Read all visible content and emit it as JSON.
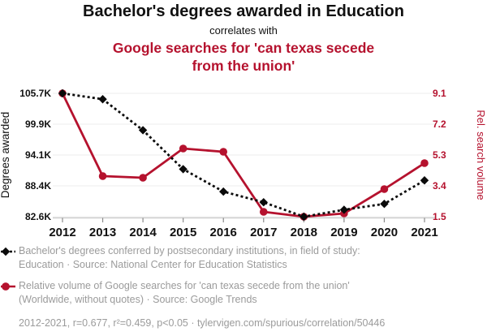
{
  "header": {
    "title": "Bachelor's degrees awarded in Education",
    "subtitle": "correlates with",
    "title2": "Google searches for 'can texas secede from the union'"
  },
  "chart_data": {
    "type": "line",
    "x": [
      "2012",
      "2013",
      "2014",
      "2015",
      "2016",
      "2017",
      "2018",
      "2019",
      "2020",
      "2021"
    ],
    "series": [
      {
        "name": "Bachelor's degrees awarded in Education",
        "axis": "left",
        "color": "#0a0a0a",
        "style": "dashed",
        "marker": "diamond",
        "values": [
          105700,
          104600,
          98800,
          91500,
          87300,
          85300,
          82600,
          83900,
          85000,
          89400
        ]
      },
      {
        "name": "Google searches for 'can texas secede from the union'",
        "axis": "right",
        "color": "#b5122e",
        "style": "solid",
        "marker": "circle",
        "values": [
          9.1,
          4.0,
          3.9,
          5.7,
          5.5,
          1.8,
          1.5,
          1.7,
          3.2,
          4.8
        ]
      }
    ],
    "y_left": {
      "label": "Degrees awarded",
      "ticks": [
        "105.7K",
        "99.9K",
        "94.1K",
        "88.4K",
        "82.6K"
      ],
      "min": 82600,
      "max": 105700
    },
    "y_right": {
      "label": "Rel. search volume",
      "ticks": [
        "9.1",
        "7.2",
        "5.3",
        "3.4",
        "1.5"
      ],
      "min": 1.5,
      "max": 9.1
    },
    "grid": true,
    "legend_position": "bottom"
  },
  "legend": {
    "entries": [
      {
        "marker": "black-diamond-dashed-line",
        "label": "Bachelor's degrees conferred by postsecondary institutions, in field of study: Education · Source: National Center for Education Statistics"
      },
      {
        "marker": "red-circle-solid-line",
        "label": "Relative volume of Google searches for 'can texas secede from the union' (Worldwide, without quotes) · Source: Google Trends"
      }
    ],
    "footer": "2012-2021, r=0.677, r²=0.459, p<0.05 · tylervigen.com/spurious/correlation/50446"
  },
  "colors": {
    "accent_red": "#b5122e",
    "series_black": "#0a0a0a",
    "grid": "#ececec",
    "axis_line": "#c8c8c8",
    "tick_mark": "#8a8a8a",
    "legend_text": "#9b9b9b"
  }
}
